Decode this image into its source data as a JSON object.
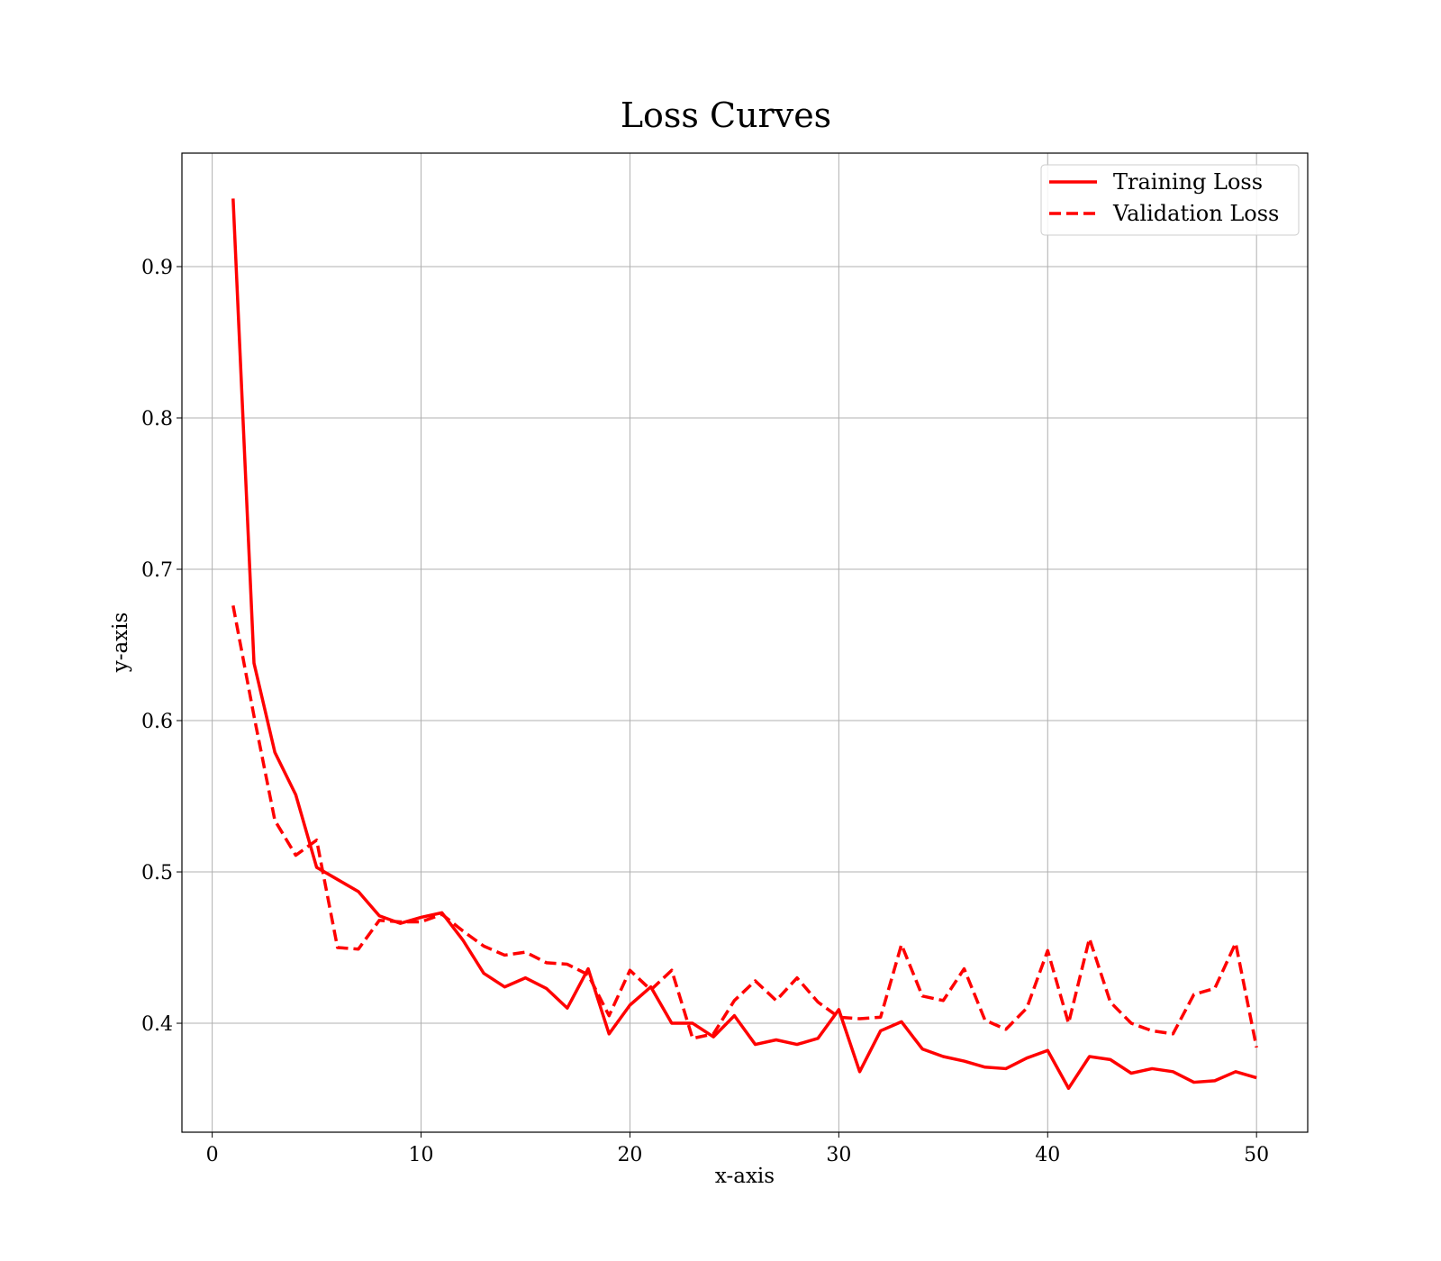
{
  "chart_data": {
    "type": "line",
    "title": "Loss Curves",
    "xlabel": "x-axis",
    "ylabel": "y-axis",
    "xlim": [
      -1.45,
      52.45
    ],
    "ylim": [
      0.328,
      0.975
    ],
    "xticks": [
      0,
      10,
      20,
      30,
      40,
      50
    ],
    "xtick_labels": [
      "0",
      "10",
      "20",
      "30",
      "40",
      "50"
    ],
    "yticks": [
      0.4,
      0.5,
      0.6,
      0.7,
      0.8,
      0.9
    ],
    "ytick_labels": [
      "0.4",
      "0.5",
      "0.6",
      "0.7",
      "0.8",
      "0.9"
    ],
    "grid": true,
    "legend_position": "top-right",
    "x": [
      1,
      2,
      3,
      4,
      5,
      6,
      7,
      8,
      9,
      10,
      11,
      12,
      13,
      14,
      15,
      16,
      17,
      18,
      19,
      20,
      21,
      22,
      23,
      24,
      25,
      26,
      27,
      28,
      29,
      30,
      31,
      32,
      33,
      34,
      35,
      36,
      37,
      38,
      39,
      40,
      41,
      42,
      43,
      44,
      45,
      46,
      47,
      48,
      49,
      50
    ],
    "series": [
      {
        "name": "Training Loss",
        "color": "#ff0000",
        "style": "solid",
        "values": [
          0.945,
          0.638,
          0.579,
          0.551,
          0.503,
          0.495,
          0.487,
          0.471,
          0.466,
          0.47,
          0.473,
          0.455,
          0.433,
          0.424,
          0.43,
          0.423,
          0.41,
          0.436,
          0.393,
          0.412,
          0.424,
          0.4,
          0.4,
          0.391,
          0.405,
          0.386,
          0.389,
          0.386,
          0.39,
          0.409,
          0.368,
          0.395,
          0.401,
          0.383,
          0.378,
          0.375,
          0.371,
          0.37,
          0.377,
          0.382,
          0.357,
          0.378,
          0.376,
          0.367,
          0.37,
          0.368,
          0.361,
          0.362,
          0.368,
          0.364
        ]
      },
      {
        "name": "Validation Loss",
        "color": "#ff0000",
        "style": "dashed",
        "values": [
          0.676,
          0.603,
          0.534,
          0.511,
          0.521,
          0.45,
          0.449,
          0.468,
          0.467,
          0.467,
          0.472,
          0.461,
          0.451,
          0.445,
          0.447,
          0.44,
          0.439,
          0.432,
          0.405,
          0.435,
          0.422,
          0.435,
          0.39,
          0.393,
          0.415,
          0.428,
          0.415,
          0.43,
          0.414,
          0.404,
          0.403,
          0.404,
          0.452,
          0.418,
          0.415,
          0.436,
          0.402,
          0.396,
          0.41,
          0.448,
          0.4,
          0.456,
          0.414,
          0.4,
          0.395,
          0.393,
          0.419,
          0.423,
          0.453,
          0.384
        ]
      }
    ]
  }
}
